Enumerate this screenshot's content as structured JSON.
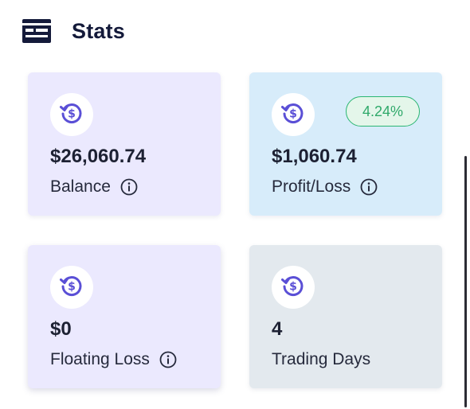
{
  "header": {
    "title": "Stats",
    "icon": "dashboard-card-icon"
  },
  "cards": [
    {
      "value": "$26,060.74",
      "label": "Balance",
      "icon": "dollar-refresh-icon",
      "has_info": true
    },
    {
      "value": "$1,060.74",
      "label": "Profit/Loss",
      "icon": "dollar-refresh-icon",
      "has_info": true,
      "badge": "4.24%"
    },
    {
      "value": "$0",
      "label": "Floating Loss",
      "icon": "dollar-refresh-icon",
      "has_info": true
    },
    {
      "value": "4",
      "label": "Trading Days",
      "icon": "dollar-refresh-icon",
      "has_info": false
    }
  ],
  "colors": {
    "accent": "#5a4fd6",
    "card_purple": "#ebe9fe",
    "card_blue": "#d7ecfa",
    "card_gray": "#e3e9ee",
    "badge_green": "#2bb673"
  }
}
